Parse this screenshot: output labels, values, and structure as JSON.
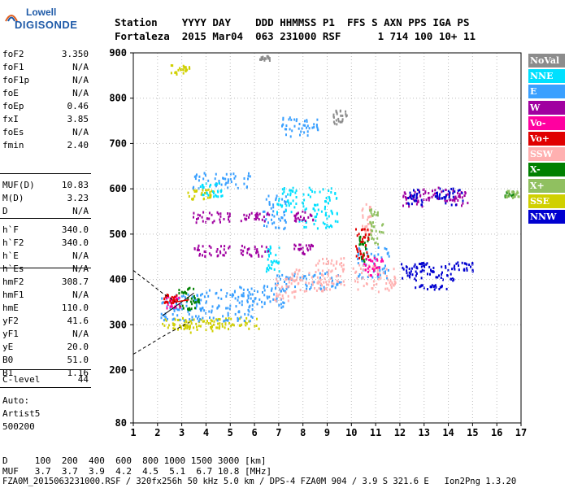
{
  "logo": {
    "line1": "Lowell",
    "line2": "DIGISONDE"
  },
  "header": {
    "row1": "Station    YYYY DAY    DDD HHMMSS P1  FFS S AXN PPS IGA PS",
    "row2": "Fortaleza  2015 Mar04  063 231000 RSF      1 714 100 10+ 11"
  },
  "params": {
    "group1": [
      {
        "k": "foF2",
        "v": "3.350"
      },
      {
        "k": "foF1",
        "v": "N/A"
      },
      {
        "k": "foF1p",
        "v": "N/A"
      },
      {
        "k": "foE",
        "v": "N/A"
      },
      {
        "k": "foEp",
        "v": "0.46"
      },
      {
        "k": "fxI",
        "v": "3.85"
      },
      {
        "k": "foEs",
        "v": "N/A"
      },
      {
        "k": "fmin",
        "v": "2.40"
      }
    ],
    "group2": [
      {
        "k": "MUF(D)",
        "v": "10.83"
      },
      {
        "k": "M(D)",
        "v": "3.23"
      },
      {
        "k": "D",
        "v": "N/A"
      }
    ],
    "group3": [
      {
        "k": "h`F",
        "v": "340.0"
      },
      {
        "k": "h`F2",
        "v": "340.0"
      },
      {
        "k": "h`E",
        "v": "N/A"
      },
      {
        "k": "h`Es",
        "v": "N/A"
      }
    ],
    "group4": [
      {
        "k": "hmF2",
        "v": "308.7"
      },
      {
        "k": "hmF1",
        "v": "N/A"
      },
      {
        "k": "hmE",
        "v": "110.0"
      },
      {
        "k": "yF2",
        "v": "41.6"
      },
      {
        "k": "yF1",
        "v": "N/A"
      },
      {
        "k": "yE",
        "v": "20.0"
      },
      {
        "k": "B0",
        "v": "51.0"
      },
      {
        "k": "B1",
        "v": "1.16"
      }
    ],
    "group5": [
      {
        "k": "C-level",
        "v": "44"
      }
    ]
  },
  "autoscale": {
    "line1": "Auto:",
    "line2": "Artist5",
    "line3": "500200"
  },
  "legend": [
    {
      "label": "NoVal",
      "color": "#8c8c8c"
    },
    {
      "label": "NNE",
      "color": "#00e0ff"
    },
    {
      "label": "E",
      "color": "#3aa0ff"
    },
    {
      "label": "W",
      "color": "#a000a0"
    },
    {
      "label": "Vo-",
      "color": "#ff00a0"
    },
    {
      "label": "Vo+",
      "color": "#e00000"
    },
    {
      "label": "SSW",
      "color": "#ffb0b0"
    },
    {
      "label": "X-",
      "color": "#008000"
    },
    {
      "label": "X+",
      "color": "#90c060"
    },
    {
      "label": "SSE",
      "color": "#d0d000"
    },
    {
      "label": "NNW",
      "color": "#0000d0"
    }
  ],
  "footer": {
    "d_row": "D     100  200  400  600  800 1000 1500 3000 [km]",
    "muf_row": "MUF   3.7  3.7  3.9  4.2  4.5  5.1  6.7 10.8 [MHz]",
    "file_row": "FZA0M_2015063231000.RSF / 320fx256h 50 kHz 5.0 km / DPS-4 FZA0M 904 / 3.9 S 321.6 E   Ion2Png 1.3.20"
  },
  "chart_data": {
    "type": "scatter",
    "x_ticks": [
      "1",
      "2",
      "3",
      "4",
      "5",
      "6",
      "7",
      "8",
      "9",
      "10",
      "11",
      "12",
      "13",
      "14",
      "15",
      "16",
      "17"
    ],
    "y_ticks": [
      "80",
      "200",
      "300",
      "400",
      "500",
      "600",
      "700",
      "800",
      "900"
    ],
    "xlim": [
      1,
      17
    ],
    "ylim": [
      80,
      900
    ],
    "series": [
      {
        "name": "SSE",
        "color": "#d0d000",
        "clusters": [
          [
            2.8,
            305,
            0.8,
            12
          ],
          [
            3.8,
            300,
            1.2,
            15
          ],
          [
            5.2,
            305,
            1.0,
            12
          ],
          [
            3.8,
            590,
            0.6,
            12
          ],
          [
            2.9,
            865,
            0.4,
            10
          ]
        ]
      },
      {
        "name": "E",
        "color": "#3aa0ff",
        "clusters": [
          [
            3.0,
            340,
            0.9,
            30
          ],
          [
            4.6,
            345,
            1.4,
            35
          ],
          [
            6.3,
            365,
            1.0,
            25
          ],
          [
            8.2,
            400,
            1.4,
            20
          ],
          [
            4.6,
            620,
            1.2,
            18
          ],
          [
            7.9,
            740,
            0.8,
            22
          ],
          [
            6.8,
            550,
            0.5,
            40
          ],
          [
            10.9,
            440,
            0.7,
            35
          ]
        ]
      },
      {
        "name": "NNE",
        "color": "#00e0ff",
        "clusters": [
          [
            8.6,
            560,
            0.8,
            45
          ],
          [
            7.3,
            580,
            0.4,
            30
          ],
          [
            6.7,
            450,
            0.3,
            30
          ],
          [
            4.2,
            600,
            0.5,
            15
          ]
        ]
      },
      {
        "name": "W",
        "color": "#a000a0",
        "clusters": [
          [
            4.2,
            465,
            0.8,
            12
          ],
          [
            4.2,
            540,
            0.8,
            12
          ],
          [
            6.0,
            465,
            0.6,
            12
          ],
          [
            6.0,
            540,
            0.6,
            10
          ],
          [
            8.0,
            470,
            0.4,
            12
          ],
          [
            8.0,
            540,
            0.4,
            12
          ],
          [
            12.5,
            580,
            0.4,
            20
          ],
          [
            13.5,
            590,
            0.7,
            15
          ],
          [
            14.5,
            580,
            0.3,
            15
          ]
        ]
      },
      {
        "name": "SSW",
        "color": "#ffb0b0",
        "clusters": [
          [
            7.3,
            380,
            0.5,
            25
          ],
          [
            8.3,
            400,
            0.8,
            25
          ],
          [
            9.1,
            420,
            0.6,
            30
          ],
          [
            10.9,
            405,
            0.9,
            30
          ],
          [
            10.6,
            530,
            0.2,
            40
          ]
        ]
      },
      {
        "name": "NNW",
        "color": "#0000d0",
        "clusters": [
          [
            12.5,
            420,
            0.5,
            20
          ],
          [
            13.4,
            420,
            0.8,
            20
          ],
          [
            14.6,
            430,
            0.4,
            10
          ],
          [
            13.2,
            385,
            0.7,
            5
          ],
          [
            12.6,
            585,
            0.3,
            18
          ],
          [
            14.0,
            585,
            0.6,
            18
          ]
        ]
      },
      {
        "name": "X-",
        "color": "#008000",
        "clusters": [
          [
            3.2,
            360,
            0.5,
            25
          ],
          [
            10.5,
            470,
            0.2,
            30
          ],
          [
            16.5,
            590,
            0.2,
            6
          ]
        ]
      },
      {
        "name": "X+",
        "color": "#90c060",
        "clusters": [
          [
            16.6,
            590,
            0.3,
            8
          ],
          [
            11.0,
            520,
            0.3,
            40
          ]
        ]
      },
      {
        "name": "Vo-",
        "color": "#ff00a0",
        "clusters": [
          [
            2.6,
            350,
            0.3,
            15
          ],
          [
            10.9,
            430,
            0.4,
            20
          ]
        ]
      },
      {
        "name": "Vo+",
        "color": "#e00000",
        "clusters": [
          [
            2.5,
            360,
            0.3,
            10
          ],
          [
            10.4,
            480,
            0.3,
            35
          ]
        ]
      },
      {
        "name": "NoVal",
        "color": "#8c8c8c",
        "clusters": [
          [
            6.4,
            890,
            0.2,
            5
          ],
          [
            9.5,
            760,
            0.3,
            15
          ]
        ]
      }
    ]
  }
}
